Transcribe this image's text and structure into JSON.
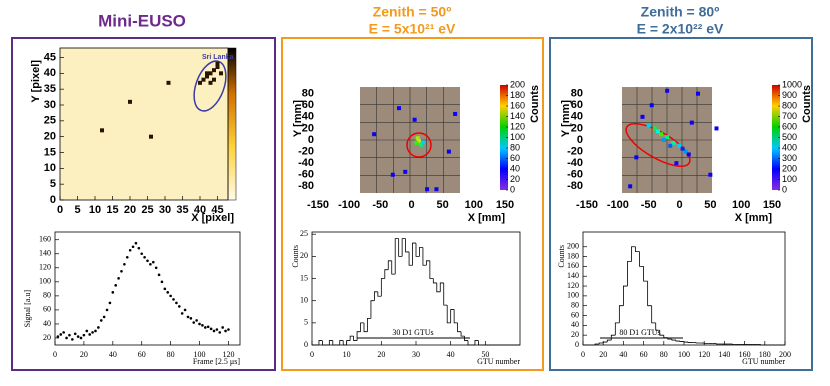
{
  "chart_data": [
    {
      "type": "heatmap",
      "title": "Mini-EUSO",
      "xlabel": "X [pixel]",
      "ylabel": "Y [pixel]",
      "annotation": "Sri Lanka",
      "xlim": [
        0,
        48
      ],
      "ylim": [
        0,
        48
      ],
      "xticks": [
        0,
        5,
        10,
        15,
        20,
        25,
        30,
        35,
        40,
        45
      ],
      "yticks": [
        0,
        5,
        10,
        15,
        20,
        25,
        30,
        35,
        40,
        45
      ],
      "x": [
        31,
        41,
        42,
        43,
        44,
        45,
        40,
        43,
        44,
        46,
        42,
        45,
        26,
        12,
        20
      ],
      "y": [
        37,
        38,
        39,
        40,
        41,
        42,
        37,
        37,
        38,
        40,
        40,
        43,
        20,
        22,
        31
      ],
      "color": "#2a1400"
    },
    {
      "type": "scatter",
      "xlabel": "Frame [2.5  μs]",
      "ylabel": "Signal [a.u]",
      "xlim": [
        0,
        128
      ],
      "ylim": [
        10,
        171
      ],
      "xticks": [
        0,
        20,
        40,
        60,
        80,
        100,
        120
      ],
      "yticks": [
        20,
        40,
        60,
        80,
        100,
        120,
        140,
        160
      ],
      "color": "#000000",
      "x": [
        2,
        4,
        6,
        8,
        10,
        12,
        14,
        16,
        18,
        20,
        22,
        24,
        26,
        28,
        30,
        32,
        34,
        36,
        38,
        40,
        42,
        44,
        46,
        48,
        50,
        52,
        54,
        56,
        58,
        60,
        62,
        64,
        66,
        68,
        70,
        72,
        74,
        76,
        78,
        80,
        82,
        84,
        86,
        88,
        90,
        92,
        94,
        96,
        98,
        100,
        102,
        104,
        106,
        108,
        110,
        112,
        114,
        116,
        118,
        120
      ],
      "values": [
        22,
        25,
        28,
        20,
        24,
        18,
        26,
        22,
        20,
        24,
        30,
        25,
        28,
        30,
        35,
        45,
        50,
        60,
        70,
        85,
        95,
        105,
        115,
        125,
        135,
        145,
        150,
        155,
        148,
        140,
        135,
        130,
        125,
        128,
        120,
        110,
        100,
        90,
        85,
        80,
        75,
        70,
        65,
        55,
        60,
        50,
        48,
        42,
        45,
        40,
        38,
        35,
        36,
        33,
        30,
        32,
        28,
        35,
        30,
        32
      ]
    },
    {
      "type": "heatmap",
      "title": "Zenith = 50º",
      "subtitle": "E = 5x10²¹ eV",
      "xlabel": "X [mm]",
      "ylabel": "Y [mm]",
      "zlabel": "Counts",
      "xlim": [
        -150,
        150
      ],
      "ylim": [
        -95,
        95
      ],
      "xticks": [
        -150,
        -100,
        -50,
        0,
        50,
        100,
        150
      ],
      "yticks": [
        -80,
        -60,
        -40,
        -20,
        0,
        20,
        40,
        60,
        80
      ],
      "zlim": [
        0,
        200
      ],
      "zticks": [
        0,
        20,
        40,
        60,
        80,
        100,
        120,
        140,
        160,
        180,
        200
      ],
      "x": [
        12,
        8,
        15,
        10,
        18,
        5,
        -30,
        40,
        -20,
        60,
        -60,
        25,
        70,
        -10
      ],
      "y": [
        -2,
        -5,
        -8,
        3,
        -4,
        35,
        -60,
        -85,
        55,
        -20,
        10,
        -85,
        45,
        -55
      ],
      "values": [
        160,
        120,
        90,
        140,
        60,
        20,
        20,
        20,
        20,
        20,
        20,
        20,
        20,
        20
      ]
    },
    {
      "type": "histogram",
      "xlabel": "GTU number",
      "ylabel": "Counts",
      "annotation": "30 D1 GTUs",
      "xlim": [
        0,
        60
      ],
      "ylim": [
        0,
        25.5
      ],
      "xticks": [
        0,
        10,
        20,
        30,
        40,
        50
      ],
      "yticks": [
        0,
        5,
        10,
        15,
        20,
        25
      ],
      "bins": [
        0,
        1,
        2,
        3,
        4,
        5,
        6,
        7,
        8,
        9,
        10,
        11,
        12,
        13,
        14,
        15,
        16,
        17,
        18,
        19,
        20,
        21,
        22,
        23,
        24,
        25,
        26,
        27,
        28,
        29,
        30,
        31,
        32,
        33,
        34,
        35,
        36,
        37,
        38,
        39,
        40,
        41,
        42,
        43,
        44,
        45,
        46,
        47,
        48,
        49,
        50,
        51,
        52,
        53,
        54,
        55,
        56,
        57,
        58,
        59,
        60
      ],
      "counts": [
        0,
        0,
        1,
        0,
        0,
        1,
        0,
        0,
        1,
        0,
        1,
        2,
        1,
        3,
        5,
        3,
        6,
        10,
        12,
        11,
        15,
        17,
        19,
        16,
        24,
        20,
        24,
        21,
        18,
        23,
        20,
        22,
        18,
        19,
        15,
        14,
        12,
        14,
        9,
        5,
        8,
        5,
        3,
        2,
        1,
        0,
        0,
        1,
        0,
        0,
        0,
        0,
        0,
        0,
        0,
        0,
        0,
        0,
        0,
        0
      ]
    },
    {
      "type": "heatmap",
      "title": "Zenith = 80º",
      "subtitle": "E = 2x10²² eV",
      "xlabel": "X [mm]",
      "ylabel": "Y [mm]",
      "zlabel": "Counts",
      "xlim": [
        -150,
        150
      ],
      "ylim": [
        -95,
        95
      ],
      "xticks": [
        -150,
        -100,
        -50,
        0,
        50,
        100,
        150
      ],
      "yticks": [
        -80,
        -60,
        -40,
        -20,
        0,
        20,
        40,
        60,
        80
      ],
      "zlim": [
        0,
        1000
      ],
      "zticks": [
        0,
        100,
        200,
        300,
        400,
        500,
        600,
        700,
        800,
        900,
        1000
      ],
      "x": [
        -40,
        -30,
        -20,
        -10,
        0,
        10,
        -50,
        -35,
        -25,
        -15,
        5,
        15,
        -60,
        -45,
        -70,
        30,
        50,
        -5,
        20,
        -80,
        60,
        -20
      ],
      "y": [
        20,
        10,
        5,
        -5,
        -10,
        -20,
        25,
        15,
        0,
        -10,
        -15,
        -25,
        40,
        60,
        -30,
        80,
        -60,
        -40,
        30,
        -80,
        20,
        85
      ],
      "values": [
        500,
        600,
        450,
        400,
        300,
        250,
        300,
        350,
        250,
        200,
        150,
        100,
        100,
        120,
        100,
        100,
        100,
        80,
        100,
        100,
        100,
        100
      ]
    },
    {
      "type": "histogram",
      "xlabel": "GTU number",
      "ylabel": "Counts",
      "annotation": "80 D1 GTUs",
      "xlim": [
        0,
        200
      ],
      "ylim": [
        0,
        230
      ],
      "xticks": [
        0,
        20,
        40,
        60,
        80,
        100,
        120,
        140,
        160,
        180,
        200
      ],
      "yticks": [
        0,
        20,
        40,
        60,
        80,
        100,
        120,
        140,
        160,
        180,
        200
      ],
      "bins": [
        0,
        4,
        8,
        12,
        16,
        20,
        24,
        28,
        32,
        36,
        40,
        44,
        48,
        52,
        56,
        60,
        64,
        68,
        72,
        76,
        80,
        84,
        88,
        92,
        96,
        100,
        104,
        108,
        112,
        116,
        120,
        124,
        128,
        132,
        136,
        140,
        144,
        148,
        152,
        156,
        160,
        164,
        168,
        172,
        176,
        180,
        184,
        188,
        192,
        196,
        200
      ],
      "counts": [
        0,
        0,
        0,
        2,
        4,
        6,
        10,
        20,
        45,
        80,
        120,
        170,
        200,
        190,
        160,
        130,
        80,
        45,
        30,
        20,
        15,
        12,
        10,
        8,
        7,
        6,
        5,
        5,
        4,
        4,
        3,
        3,
        3,
        2,
        2,
        2,
        2,
        1,
        1,
        1,
        1,
        1,
        1,
        1,
        0,
        0,
        0,
        0,
        0,
        0
      ]
    }
  ]
}
